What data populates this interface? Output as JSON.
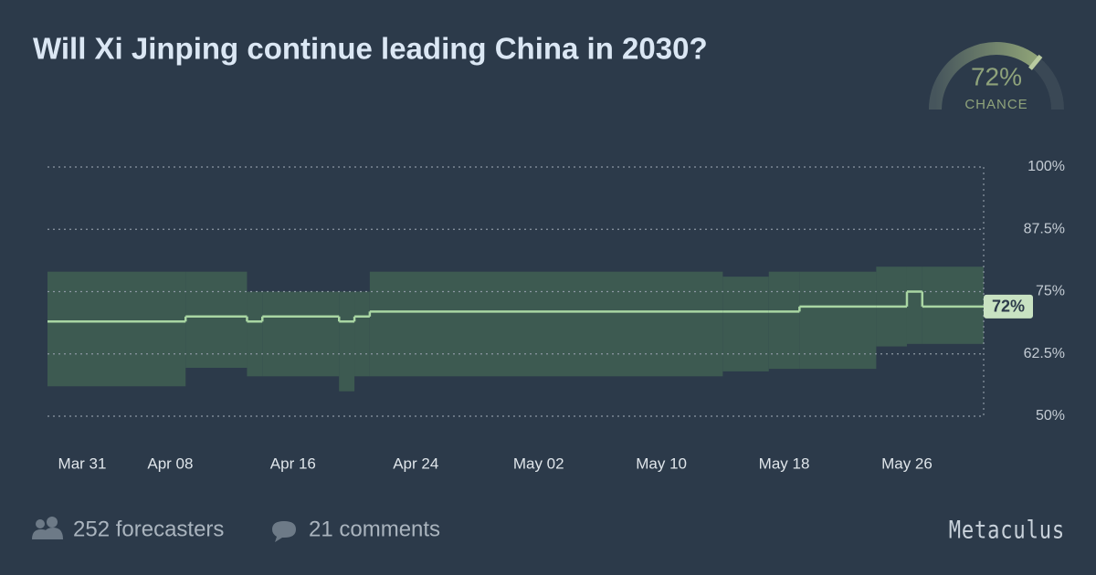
{
  "chart_data": {
    "type": "step-band",
    "title": "Will Xi Jinping continue leading China in 2030?",
    "gauge": {
      "value": 72,
      "label": "72%",
      "caption": "CHANCE"
    },
    "x": [
      "Mar 31",
      "Apr 09",
      "Apr 13",
      "Apr 14",
      "Apr 19",
      "Apr 20",
      "Apr 21",
      "May 14",
      "May 17",
      "May 19",
      "May 24",
      "May 26",
      "May 27"
    ],
    "series": [
      {
        "name": "community prediction",
        "color": "#a9d6a3",
        "values": [
          69,
          70,
          69,
          70,
          69,
          70,
          71,
          71,
          71,
          72,
          72,
          75,
          72
        ]
      },
      {
        "name": "lower quartile",
        "color": "#3d5a51",
        "values": [
          56,
          59.7,
          58,
          58,
          55,
          58,
          58,
          59,
          59.5,
          59.5,
          64,
          64.5,
          64.5
        ]
      },
      {
        "name": "upper quartile",
        "color": "#3d5a51",
        "values": [
          79,
          79,
          75,
          75,
          75,
          75,
          79,
          78,
          79,
          79,
          80,
          80,
          80
        ]
      }
    ],
    "xlim": [
      "Mar 31",
      "May 31"
    ],
    "xticks": [
      "Mar 31",
      "Apr 08",
      "Apr 16",
      "Apr 24",
      "May 02",
      "May 10",
      "May 18",
      "May 26"
    ],
    "ylim": [
      50,
      100
    ],
    "yticks": [
      {
        "value": 50,
        "label": "50%"
      },
      {
        "value": 62.5,
        "label": "62.5%"
      },
      {
        "value": 75,
        "label": "75%"
      },
      {
        "value": 87.5,
        "label": "87.5%"
      },
      {
        "value": 100,
        "label": "100%"
      }
    ],
    "grid": true
  },
  "footer": {
    "forecasters": "252 forecasters",
    "comments": "21 comments",
    "brand": "Metaculus"
  }
}
